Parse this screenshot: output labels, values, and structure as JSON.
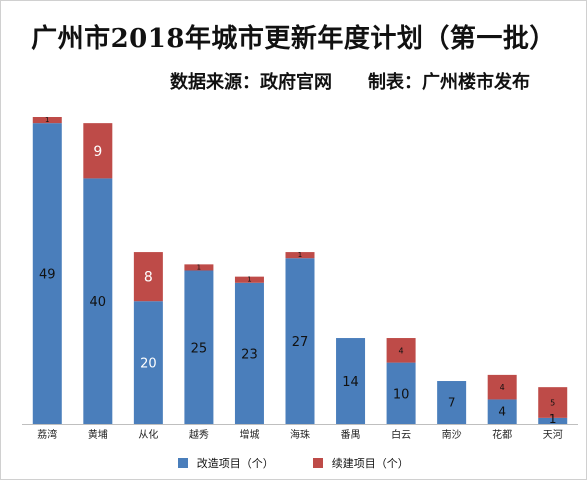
{
  "title": "广州市2018年城市更新年度计划（第一批）",
  "subtitle": "数据来源：政府官网　　制表：广州楼市发布",
  "colors": {
    "series_a": "#4a7ebb",
    "series_b": "#be4b48",
    "axis": "#bfbfbf",
    "background": "#ffffff"
  },
  "chart_data": {
    "type": "bar",
    "stacked": true,
    "categories": [
      "荔湾",
      "黄埔",
      "从化",
      "越秀",
      "增城",
      "海珠",
      "番禺",
      "白云",
      "南沙",
      "花都",
      "天河"
    ],
    "series": [
      {
        "name": "改造项目（个）",
        "values": [
          49,
          40,
          20,
          25,
          23,
          27,
          14,
          10,
          7,
          4,
          1
        ],
        "labels": [
          "49",
          "40",
          "20",
          "25",
          "23",
          "27",
          "14",
          "10",
          "7",
          "4",
          "1"
        ]
      },
      {
        "name": "续建项目（个）",
        "values": [
          1,
          9,
          8,
          1,
          1,
          1,
          0,
          4,
          0,
          4,
          5
        ],
        "labels": [
          "1",
          "9",
          "8",
          "1",
          "1",
          "1",
          "",
          "4",
          "",
          "4",
          "5"
        ]
      }
    ],
    "ylim": [
      0,
      50
    ],
    "grid": false,
    "legend_position": "bottom"
  },
  "legend": {
    "series_a": "改造项目（个）",
    "series_b": "续建项目（个）"
  }
}
